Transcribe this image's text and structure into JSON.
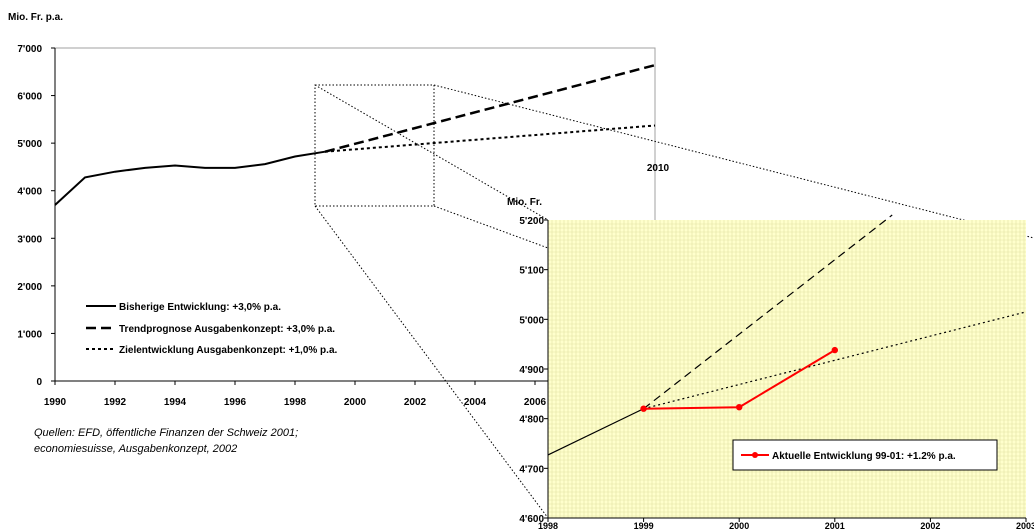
{
  "chart_data": [
    {
      "type": "line",
      "ylabel": "Mio. Fr. p.a.",
      "xlim": [
        1990,
        2010
      ],
      "ylim": [
        0,
        7000
      ],
      "x_ticks": [
        "1990",
        "1992",
        "1994",
        "1996",
        "1998",
        "2000",
        "2002",
        "2004",
        "2006"
      ],
      "y_ticks": [
        "0",
        "1'000",
        "2'000",
        "3'000",
        "4'000",
        "5'000",
        "6'000",
        "7'000"
      ],
      "x_end_label": "2010",
      "legend_position": "bottom-left",
      "series": [
        {
          "name": "Bisherige Entwicklung: +3,0% p.a.",
          "style": "solid",
          "x": [
            1990,
            1991,
            1992,
            1993,
            1994,
            1995,
            1996,
            1997,
            1998,
            1999
          ],
          "y": [
            3700,
            4280,
            4400,
            4480,
            4530,
            4480,
            4480,
            4560,
            4720,
            4820
          ]
        },
        {
          "name": "Trendprognose Ausgabenkonzept: +3,0% p.a.",
          "style": "dashed",
          "x": [
            1999,
            2010
          ],
          "y": [
            4820,
            6640
          ]
        },
        {
          "name": "Zielentwicklung Ausgabenkonzept: +1,0% p.a.",
          "style": "dotted",
          "x": [
            1999,
            2010
          ],
          "y": [
            4820,
            5370
          ]
        }
      ]
    },
    {
      "type": "line",
      "ylabel": "Mio. Fr.",
      "xlim": [
        1998,
        2003
      ],
      "ylim": [
        4600,
        5200
      ],
      "x_ticks": [
        "1998",
        "1999",
        "2000",
        "2001",
        "2002",
        "2003"
      ],
      "y_ticks": [
        "4'600",
        "4'700",
        "4'800",
        "4'900",
        "5'000",
        "5'100",
        "5'200"
      ],
      "background": "#ffffcc",
      "series": [
        {
          "style": "solid",
          "x": [
            1998,
            1999
          ],
          "y": [
            4727,
            4820
          ]
        },
        {
          "style": "dashed",
          "x": [
            1999,
            2001.6
          ],
          "y": [
            4820,
            5210
          ]
        },
        {
          "style": "dotted",
          "x": [
            1999,
            2003
          ],
          "y": [
            4820,
            5015
          ]
        },
        {
          "name": "Aktuelle Entwicklung 99-01: +1.2% p.a.",
          "style": "solid-markers",
          "color": "#ff0000",
          "x": [
            1999,
            2000,
            2001
          ],
          "y": [
            4820,
            4823,
            4938
          ]
        }
      ]
    }
  ],
  "source_note": {
    "line1": "Quellen: EFD, öffentliche Finanzen der Schweiz 2001;",
    "line2": "economiesuisse, Ausgabenkonzept, 2002"
  }
}
